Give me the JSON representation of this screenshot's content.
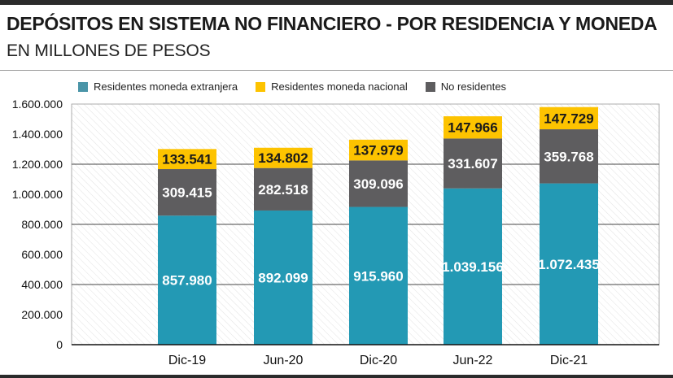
{
  "header": {
    "title": "DEPÓSITOS EN SISTEMA NO FINANCIERO - POR RESIDENCIA Y MONEDA",
    "subtitle": "EN MILLONES DE PESOS"
  },
  "chart_data": {
    "type": "bar",
    "stacked": true,
    "categories": [
      "Dic-19",
      "Jun-20",
      "Dic-20",
      "Jun-22",
      "Dic-21"
    ],
    "series": [
      {
        "name": "Residentes moneda extranjera",
        "color": "#2399b4",
        "values": [
          857980,
          892099,
          915960,
          1039156,
          1072435
        ],
        "labels": [
          "857.980",
          "892.099",
          "915.960",
          "1.039.156",
          "1.072.435"
        ]
      },
      {
        "name": "No residentes",
        "color": "#5e5d5f",
        "values": [
          309415,
          282518,
          309096,
          331607,
          359768
        ],
        "labels": [
          "309.415",
          "282.518",
          "309.096",
          "331.607",
          "359.768"
        ]
      },
      {
        "name": "Residentes moneda nacional",
        "color": "#fdc300",
        "values": [
          133541,
          134802,
          137979,
          147966,
          147729
        ],
        "labels": [
          "133.541",
          "134.802",
          "137.979",
          "147.966",
          "147.729"
        ]
      }
    ],
    "legend": [
      {
        "name": "Residentes moneda extranjera",
        "color": "#4a95a8"
      },
      {
        "name": "Residentes moneda nacional",
        "color": "#fdc300"
      },
      {
        "name": "No residentes",
        "color": "#5e5d5f"
      }
    ],
    "yticks": [
      0,
      200000,
      400000,
      600000,
      800000,
      1000000,
      1200000,
      1400000,
      1600000
    ],
    "ytick_labels": [
      "0",
      "200.000",
      "400.000",
      "600.000",
      "800.000",
      "1.000.000",
      "1.200.000",
      "1.400.000",
      "1.600.000"
    ],
    "ylim": [
      0,
      1600000
    ],
    "legend_position": "top",
    "grid": true
  }
}
